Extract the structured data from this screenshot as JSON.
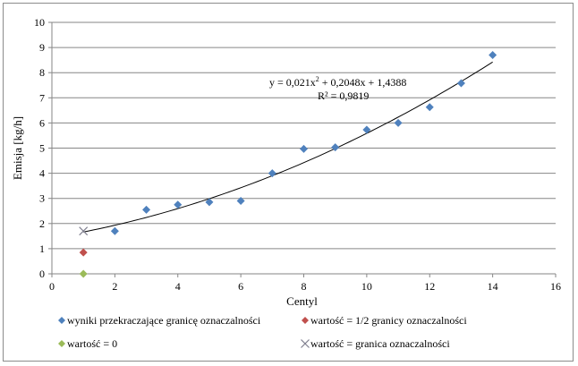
{
  "chart_data": {
    "type": "scatter",
    "xlabel": "Centyl",
    "ylabel": "Emisja  [kg/h]",
    "xlim": [
      0,
      16
    ],
    "ylim": [
      0,
      10
    ],
    "xticks": [
      0,
      2,
      4,
      6,
      8,
      10,
      12,
      14,
      16
    ],
    "yticks": [
      0,
      1,
      2,
      3,
      4,
      5,
      6,
      7,
      8,
      9,
      10
    ],
    "grid": "horizontal",
    "legend_position": "bottom",
    "series": [
      {
        "name": "wyniki przekraczające granicę oznaczalności",
        "marker": "diamond",
        "color": "#4f81bd",
        "x": [
          2,
          3,
          4,
          5,
          6,
          7,
          8,
          9,
          10,
          11,
          12,
          13,
          14
        ],
        "y": [
          1.7,
          2.55,
          2.75,
          2.85,
          2.9,
          4.0,
          4.97,
          5.03,
          5.73,
          6.0,
          6.63,
          7.58,
          8.7
        ]
      },
      {
        "name": "wartość = 1/2 granicy oznaczalności",
        "marker": "diamond",
        "color": "#c0504d",
        "x": [
          1
        ],
        "y": [
          0.85
        ]
      },
      {
        "name": "wartość = 0",
        "marker": "diamond",
        "color": "#9bbb59",
        "x": [
          1
        ],
        "y": [
          0
        ]
      },
      {
        "name": "wartość = granica oznaczalności",
        "marker": "x",
        "color": "#7f7f8f",
        "x": [
          1
        ],
        "y": [
          1.7
        ]
      }
    ],
    "trendline": {
      "type": "polynomial",
      "coefficients": [
        0.021,
        0.2048,
        1.4388
      ],
      "x_range": [
        1,
        14
      ],
      "color": "#000000"
    },
    "annotations": {
      "equation_prefix": "y = 0,021x",
      "equation_exponent": "2",
      "equation_rest": " + 0,2048x  + 1,4388",
      "r_squared": "R² = 0,9819"
    }
  }
}
